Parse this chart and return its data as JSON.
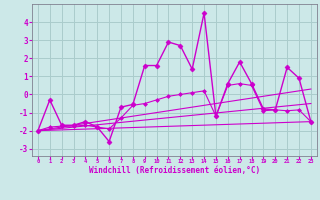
{
  "xlabel": "Windchill (Refroidissement éolien,°C)",
  "ylabel": "",
  "bg_color": "#cce8e8",
  "grid_color": "#aacccc",
  "line_color": "#cc00cc",
  "xlim": [
    -0.5,
    23.5
  ],
  "ylim": [
    -3.4,
    5.0
  ],
  "yticks": [
    -3,
    -2,
    -1,
    0,
    1,
    2,
    3,
    4
  ],
  "xticks": [
    0,
    1,
    2,
    3,
    4,
    5,
    6,
    7,
    8,
    9,
    10,
    11,
    12,
    13,
    14,
    15,
    16,
    17,
    18,
    19,
    20,
    21,
    22,
    23
  ],
  "lines": [
    {
      "x": [
        0,
        1,
        2,
        3,
        4,
        5,
        6,
        7,
        8,
        9,
        10,
        11,
        12,
        13,
        14,
        15,
        16,
        17,
        18,
        19,
        20,
        21,
        22,
        23
      ],
      "y": [
        -2.0,
        -0.3,
        -1.7,
        -1.7,
        -1.5,
        -1.8,
        -2.6,
        -0.7,
        -0.55,
        1.6,
        1.6,
        2.9,
        2.7,
        1.4,
        4.5,
        -1.2,
        0.6,
        1.8,
        0.6,
        -0.8,
        -0.85,
        1.5,
        0.9,
        -1.5
      ],
      "marker": "D",
      "markersize": 2.5,
      "linewidth": 1.0
    },
    {
      "x": [
        0,
        1,
        2,
        3,
        4,
        5,
        6,
        7,
        8,
        9,
        10,
        11,
        12,
        13,
        14,
        15,
        16,
        17,
        18,
        19,
        20,
        21,
        22,
        23
      ],
      "y": [
        -2.0,
        -1.8,
        -1.75,
        -1.75,
        -1.7,
        -1.8,
        -1.9,
        -1.3,
        -0.6,
        -0.5,
        -0.3,
        -0.1,
        0.0,
        0.1,
        0.2,
        -1.2,
        0.5,
        0.6,
        0.5,
        -0.9,
        -0.85,
        -0.9,
        -0.85,
        -1.5
      ],
      "marker": "D",
      "markersize": 2.0,
      "linewidth": 0.8
    },
    {
      "x": [
        0,
        23
      ],
      "y": [
        -2.0,
        -1.5
      ],
      "marker": null,
      "markersize": 0,
      "linewidth": 0.8
    },
    {
      "x": [
        0,
        23
      ],
      "y": [
        -2.0,
        -0.5
      ],
      "marker": null,
      "markersize": 0,
      "linewidth": 0.8
    },
    {
      "x": [
        0,
        23
      ],
      "y": [
        -2.0,
        0.3
      ],
      "marker": null,
      "markersize": 0,
      "linewidth": 0.8
    }
  ]
}
